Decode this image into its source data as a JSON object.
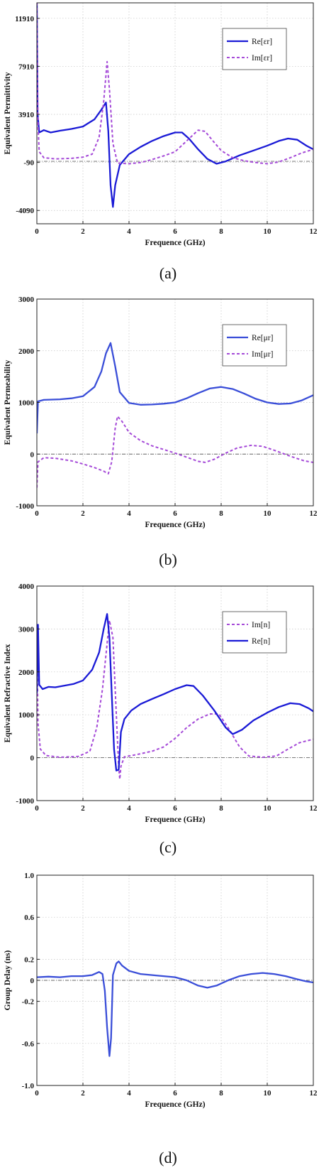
{
  "chart_data": [
    {
      "type": "line",
      "panel_label": "(a)",
      "xlabel": "Frequence (GHz)",
      "ylabel": "Equivalent Permittivity",
      "xlim": [
        0,
        12
      ],
      "ylim": [
        -5200,
        13200
      ],
      "x_ticks": [
        0,
        2,
        4,
        6,
        8,
        10,
        12
      ],
      "y_ticks": [
        -4090,
        -90,
        3910,
        7910,
        11910
      ],
      "grid": true,
      "legend_position": "top-right",
      "reference_line": 0,
      "series": [
        {
          "name": "Re[εr]",
          "style": "solid",
          "color": "#1a1ad6",
          "points": [
            [
              0,
              13200
            ],
            [
              0.03,
              4000
            ],
            [
              0.1,
              2400
            ],
            [
              0.3,
              2600
            ],
            [
              0.6,
              2400
            ],
            [
              1.0,
              2550
            ],
            [
              1.5,
              2700
            ],
            [
              2.0,
              2900
            ],
            [
              2.5,
              3500
            ],
            [
              2.8,
              4300
            ],
            [
              3.0,
              4900
            ],
            [
              3.1,
              2500
            ],
            [
              3.2,
              -2000
            ],
            [
              3.3,
              -3800
            ],
            [
              3.4,
              -2000
            ],
            [
              3.6,
              -300
            ],
            [
              4.0,
              600
            ],
            [
              4.5,
              1200
            ],
            [
              5.0,
              1700
            ],
            [
              5.5,
              2100
            ],
            [
              6.0,
              2400
            ],
            [
              6.3,
              2400
            ],
            [
              6.6,
              1900
            ],
            [
              7.0,
              1000
            ],
            [
              7.4,
              200
            ],
            [
              7.8,
              -200
            ],
            [
              8.2,
              0
            ],
            [
              8.8,
              500
            ],
            [
              9.4,
              900
            ],
            [
              10.0,
              1300
            ],
            [
              10.5,
              1700
            ],
            [
              10.9,
              1900
            ],
            [
              11.3,
              1800
            ],
            [
              11.7,
              1300
            ],
            [
              12.0,
              1000
            ]
          ]
        },
        {
          "name": "Im[εr]",
          "style": "dashed",
          "color": "#a54ad8",
          "points": [
            [
              0,
              13200
            ],
            [
              0.05,
              3000
            ],
            [
              0.1,
              800
            ],
            [
              0.3,
              300
            ],
            [
              0.8,
              200
            ],
            [
              1.5,
              250
            ],
            [
              2.0,
              350
            ],
            [
              2.4,
              600
            ],
            [
              2.7,
              2000
            ],
            [
              2.9,
              5000
            ],
            [
              3.05,
              8300
            ],
            [
              3.15,
              6000
            ],
            [
              3.3,
              1500
            ],
            [
              3.5,
              -150
            ],
            [
              4.0,
              -200
            ],
            [
              4.5,
              -100
            ],
            [
              5.0,
              150
            ],
            [
              5.5,
              450
            ],
            [
              6.0,
              800
            ],
            [
              6.5,
              1700
            ],
            [
              7.0,
              2600
            ],
            [
              7.3,
              2500
            ],
            [
              7.6,
              1800
            ],
            [
              8.0,
              900
            ],
            [
              8.5,
              300
            ],
            [
              9.0,
              50
            ],
            [
              9.5,
              -100
            ],
            [
              10.0,
              -200
            ],
            [
              10.5,
              -50
            ],
            [
              11.0,
              300
            ],
            [
              11.5,
              700
            ],
            [
              12.0,
              1000
            ]
          ]
        }
      ]
    },
    {
      "type": "line",
      "panel_label": "(b)",
      "xlabel": "Frequence (GHz)",
      "ylabel": "Equivalent Permeability",
      "xlim": [
        0,
        12
      ],
      "ylim": [
        -1000,
        3000
      ],
      "x_ticks": [
        0,
        2,
        4,
        6,
        8,
        10,
        12
      ],
      "y_ticks": [
        -1000,
        0,
        1000,
        2000,
        3000
      ],
      "grid": true,
      "legend_position": "top-right",
      "reference_line": 0,
      "series": [
        {
          "name": "Re[μr]",
          "style": "solid",
          "color": "#3a4ed8",
          "points": [
            [
              0,
              400
            ],
            [
              0.05,
              1020
            ],
            [
              0.3,
              1050
            ],
            [
              1.0,
              1060
            ],
            [
              1.5,
              1080
            ],
            [
              2.0,
              1120
            ],
            [
              2.5,
              1300
            ],
            [
              2.8,
              1600
            ],
            [
              3.0,
              1950
            ],
            [
              3.2,
              2150
            ],
            [
              3.4,
              1700
            ],
            [
              3.6,
              1200
            ],
            [
              4.0,
              990
            ],
            [
              4.5,
              955
            ],
            [
              5.0,
              960
            ],
            [
              5.5,
              975
            ],
            [
              6.0,
              1000
            ],
            [
              6.5,
              1080
            ],
            [
              7.0,
              1180
            ],
            [
              7.5,
              1270
            ],
            [
              8.0,
              1300
            ],
            [
              8.5,
              1260
            ],
            [
              9.0,
              1170
            ],
            [
              9.5,
              1070
            ],
            [
              10.0,
              1000
            ],
            [
              10.5,
              970
            ],
            [
              11.0,
              980
            ],
            [
              11.5,
              1040
            ],
            [
              12.0,
              1140
            ]
          ]
        },
        {
          "name": "Im[μr]",
          "style": "dashed",
          "color": "#a54ad8",
          "points": [
            [
              0,
              -650
            ],
            [
              0.05,
              -150
            ],
            [
              0.3,
              -70
            ],
            [
              0.8,
              -80
            ],
            [
              1.5,
              -130
            ],
            [
              2.0,
              -190
            ],
            [
              2.5,
              -260
            ],
            [
              2.9,
              -330
            ],
            [
              3.1,
              -380
            ],
            [
              3.25,
              -150
            ],
            [
              3.4,
              500
            ],
            [
              3.5,
              730
            ],
            [
              3.7,
              630
            ],
            [
              4.0,
              420
            ],
            [
              4.5,
              260
            ],
            [
              5.0,
              160
            ],
            [
              5.5,
              90
            ],
            [
              6.0,
              20
            ],
            [
              6.5,
              -60
            ],
            [
              7.0,
              -140
            ],
            [
              7.3,
              -160
            ],
            [
              7.7,
              -100
            ],
            [
              8.2,
              20
            ],
            [
              8.7,
              120
            ],
            [
              9.3,
              170
            ],
            [
              9.8,
              150
            ],
            [
              10.4,
              60
            ],
            [
              11.0,
              -40
            ],
            [
              11.6,
              -130
            ],
            [
              12.0,
              -160
            ]
          ]
        }
      ]
    },
    {
      "type": "line",
      "panel_label": "(c)",
      "xlabel": "Frequence (GHz)",
      "ylabel": "Equivalent Refractive Index",
      "xlim": [
        0,
        12
      ],
      "ylim": [
        -1000,
        4000
      ],
      "x_ticks": [
        0,
        2,
        4,
        6,
        8,
        10,
        12
      ],
      "y_ticks": [
        -1000,
        0,
        1000,
        2000,
        3000,
        4000
      ],
      "grid": true,
      "legend_position": "top-right",
      "reference_line": 0,
      "series": [
        {
          "name": "Im[n]",
          "style": "dashed",
          "color": "#a54ad8",
          "points": [
            [
              0,
              3000
            ],
            [
              0.05,
              800
            ],
            [
              0.15,
              200
            ],
            [
              0.4,
              50
            ],
            [
              1.0,
              10
            ],
            [
              1.8,
              30
            ],
            [
              2.3,
              150
            ],
            [
              2.6,
              700
            ],
            [
              2.85,
              1600
            ],
            [
              3.0,
              2400
            ],
            [
              3.15,
              3200
            ],
            [
              3.3,
              2800
            ],
            [
              3.45,
              1000
            ],
            [
              3.55,
              -200
            ],
            [
              3.6,
              -500
            ],
            [
              3.65,
              -200
            ],
            [
              3.8,
              20
            ],
            [
              4.3,
              70
            ],
            [
              5.0,
              150
            ],
            [
              5.5,
              250
            ],
            [
              6.0,
              450
            ],
            [
              6.5,
              700
            ],
            [
              7.0,
              900
            ],
            [
              7.5,
              1020
            ],
            [
              7.9,
              1020
            ],
            [
              8.3,
              700
            ],
            [
              8.8,
              250
            ],
            [
              9.2,
              40
            ],
            [
              9.8,
              10
            ],
            [
              10.4,
              40
            ],
            [
              10.9,
              200
            ],
            [
              11.4,
              350
            ],
            [
              12.0,
              430
            ]
          ]
        },
        {
          "name": "Re[n]",
          "style": "solid",
          "color": "#1a1ad6",
          "points": [
            [
              0,
              1500
            ],
            [
              0.05,
              3100
            ],
            [
              0.1,
              1700
            ],
            [
              0.25,
              1600
            ],
            [
              0.5,
              1650
            ],
            [
              0.8,
              1640
            ],
            [
              1.2,
              1680
            ],
            [
              1.6,
              1720
            ],
            [
              2.0,
              1800
            ],
            [
              2.4,
              2050
            ],
            [
              2.7,
              2450
            ],
            [
              2.9,
              3000
            ],
            [
              3.05,
              3350
            ],
            [
              3.15,
              2800
            ],
            [
              3.25,
              1500
            ],
            [
              3.35,
              200
            ],
            [
              3.45,
              -300
            ],
            [
              3.55,
              -280
            ],
            [
              3.65,
              600
            ],
            [
              3.8,
              900
            ],
            [
              4.1,
              1100
            ],
            [
              4.5,
              1250
            ],
            [
              5.0,
              1370
            ],
            [
              5.5,
              1480
            ],
            [
              6.0,
              1600
            ],
            [
              6.5,
              1690
            ],
            [
              6.8,
              1670
            ],
            [
              7.2,
              1450
            ],
            [
              7.7,
              1100
            ],
            [
              8.2,
              700
            ],
            [
              8.5,
              550
            ],
            [
              8.9,
              650
            ],
            [
              9.4,
              870
            ],
            [
              10.0,
              1050
            ],
            [
              10.5,
              1180
            ],
            [
              11.0,
              1270
            ],
            [
              11.4,
              1250
            ],
            [
              11.8,
              1150
            ],
            [
              12.0,
              1080
            ]
          ]
        }
      ]
    },
    {
      "type": "line",
      "panel_label": "(d)",
      "xlabel": "Frequence (GHz)",
      "ylabel": "Group Delay (ns)",
      "xlim": [
        0,
        12
      ],
      "ylim": [
        -1.0,
        1.0
      ],
      "x_ticks": [
        0,
        2,
        4,
        6,
        8,
        10,
        12
      ],
      "y_ticks": [
        -1.0,
        -0.6,
        -0.2,
        0,
        0.2,
        0.6,
        1.0
      ],
      "y_tick_labels": [
        "-1.0",
        "-0.6",
        "-0.2",
        "0",
        "0.2",
        "0.6",
        "1.0"
      ],
      "grid": true,
      "reference_line": 0,
      "series": [
        {
          "style": "solid",
          "color": "#3a4ed8",
          "points": [
            [
              0,
              0.03
            ],
            [
              0.5,
              0.035
            ],
            [
              1.0,
              0.03
            ],
            [
              1.5,
              0.04
            ],
            [
              2.0,
              0.04
            ],
            [
              2.4,
              0.05
            ],
            [
              2.7,
              0.08
            ],
            [
              2.85,
              0.06
            ],
            [
              2.95,
              -0.1
            ],
            [
              3.05,
              -0.45
            ],
            [
              3.15,
              -0.72
            ],
            [
              3.22,
              -0.55
            ],
            [
              3.3,
              0.05
            ],
            [
              3.45,
              0.16
            ],
            [
              3.55,
              0.18
            ],
            [
              3.7,
              0.14
            ],
            [
              4.0,
              0.09
            ],
            [
              4.5,
              0.06
            ],
            [
              5.0,
              0.05
            ],
            [
              5.5,
              0.04
            ],
            [
              6.0,
              0.03
            ],
            [
              6.5,
              0.0
            ],
            [
              7.0,
              -0.05
            ],
            [
              7.4,
              -0.07
            ],
            [
              7.8,
              -0.05
            ],
            [
              8.3,
              0.0
            ],
            [
              8.8,
              0.04
            ],
            [
              9.3,
              0.06
            ],
            [
              9.8,
              0.07
            ],
            [
              10.3,
              0.06
            ],
            [
              10.8,
              0.04
            ],
            [
              11.3,
              0.01
            ],
            [
              11.7,
              -0.01
            ],
            [
              12.0,
              -0.02
            ]
          ]
        }
      ]
    }
  ]
}
